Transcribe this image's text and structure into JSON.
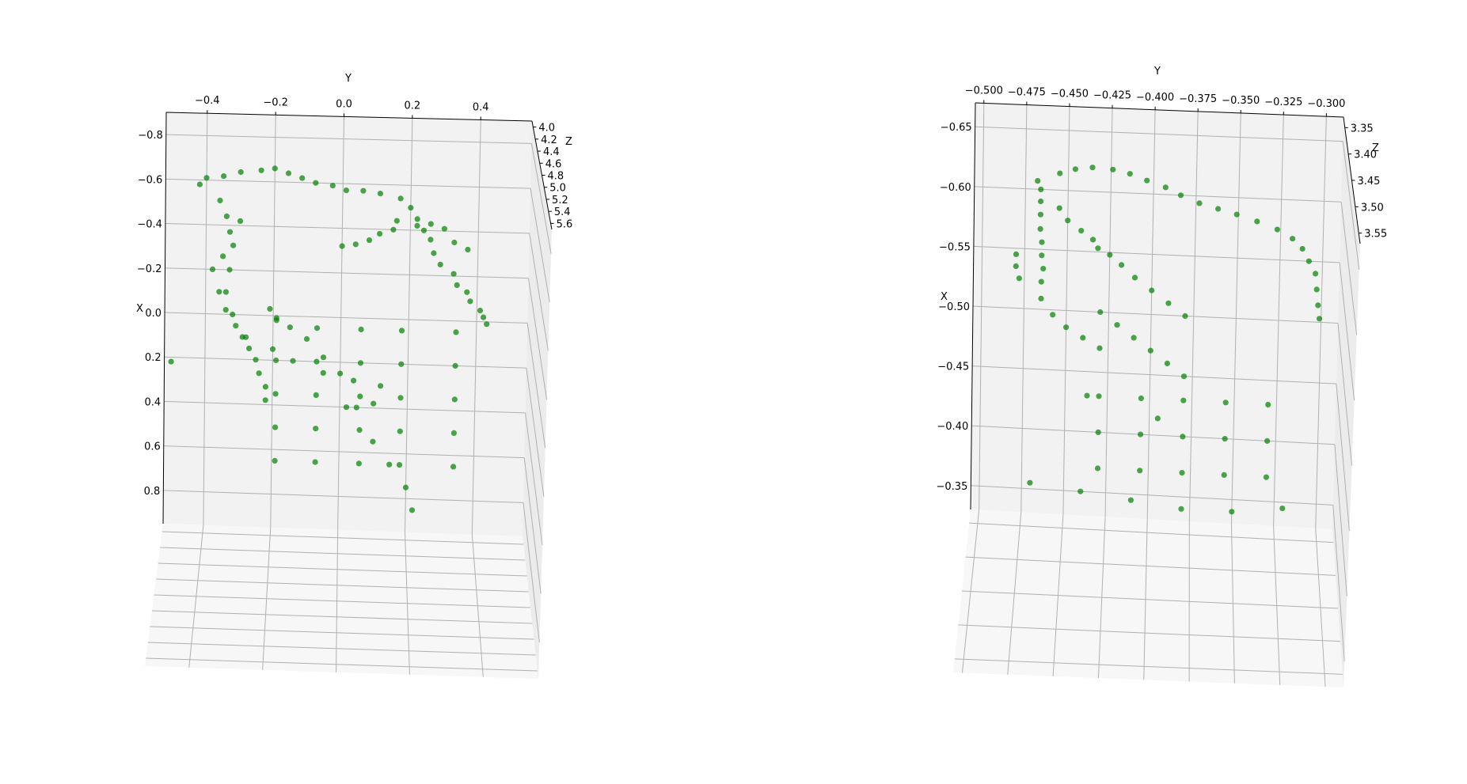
{
  "chart_data": [
    {
      "type": "scatter",
      "projection": "3d",
      "title": "",
      "xlabel": "X",
      "ylabel": "Y",
      "zlabel": "Z",
      "marker_color": "#008000",
      "pane_color": "#f2f2f2",
      "grid_color": "#b0b0b0",
      "xlim": [
        -0.9,
        0.95
      ],
      "ylim": [
        -0.52,
        0.55
      ],
      "zlim": [
        3.9,
        5.7
      ],
      "x_ticks": [
        -0.8,
        -0.6,
        -0.4,
        -0.2,
        0.0,
        0.2,
        0.4,
        0.6,
        0.8
      ],
      "x_tick_labels": [
        "−0.8",
        "−0.6",
        "−0.4",
        "−0.2",
        "0.0",
        "0.2",
        "0.4",
        "0.6",
        "0.8"
      ],
      "y_ticks": [
        -0.4,
        -0.2,
        0.0,
        0.2,
        0.4
      ],
      "y_tick_labels": [
        "−0.4",
        "−0.2",
        "0.0",
        "0.2",
        "0.4"
      ],
      "z_ticks": [
        4.0,
        4.2,
        4.4,
        4.6,
        4.8,
        5.0,
        5.2,
        5.4,
        5.6
      ],
      "z_tick_labels": [
        "4.0",
        "4.2",
        "4.4",
        "4.6",
        "4.8",
        "5.0",
        "5.2",
        "5.4",
        "5.6"
      ],
      "points": [
        {
          "x": -0.61,
          "y": -0.4
        },
        {
          "x": -0.62,
          "y": -0.35
        },
        {
          "x": -0.64,
          "y": -0.3
        },
        {
          "x": -0.65,
          "y": -0.24
        },
        {
          "x": -0.66,
          "y": -0.2
        },
        {
          "x": -0.64,
          "y": -0.16
        },
        {
          "x": -0.62,
          "y": -0.12
        },
        {
          "x": -0.6,
          "y": -0.08
        },
        {
          "x": -0.59,
          "y": -0.03
        },
        {
          "x": -0.57,
          "y": 0.01
        },
        {
          "x": -0.57,
          "y": 0.06
        },
        {
          "x": -0.56,
          "y": 0.11
        },
        {
          "x": -0.54,
          "y": 0.17
        },
        {
          "x": -0.5,
          "y": 0.2
        },
        {
          "x": -0.45,
          "y": 0.22
        },
        {
          "x": -0.4,
          "y": 0.24
        },
        {
          "x": -0.36,
          "y": 0.26
        },
        {
          "x": -0.3,
          "y": 0.27
        },
        {
          "x": -0.25,
          "y": 0.29
        },
        {
          "x": -0.21,
          "y": 0.33
        },
        {
          "x": -0.16,
          "y": 0.34
        },
        {
          "x": -0.13,
          "y": 0.37
        },
        {
          "x": -0.09,
          "y": 0.38
        },
        {
          "x": -0.05,
          "y": 0.41
        },
        {
          "x": -0.02,
          "y": 0.42
        },
        {
          "x": 0.01,
          "y": 0.43
        },
        {
          "x": -0.58,
          "y": -0.42
        },
        {
          "x": -0.51,
          "y": -0.36
        },
        {
          "x": -0.44,
          "y": -0.34
        },
        {
          "x": -0.42,
          "y": -0.3
        },
        {
          "x": -0.37,
          "y": -0.33
        },
        {
          "x": -0.31,
          "y": -0.32
        },
        {
          "x": -0.26,
          "y": -0.35
        },
        {
          "x": -0.2,
          "y": -0.33
        },
        {
          "x": -0.1,
          "y": -0.34
        },
        {
          "x": -0.02,
          "y": -0.34
        },
        {
          "x": 0.05,
          "y": -0.31
        },
        {
          "x": 0.1,
          "y": -0.29
        },
        {
          "x": 0.15,
          "y": -0.27
        },
        {
          "x": 0.2,
          "y": -0.25
        },
        {
          "x": 0.26,
          "y": -0.24
        },
        {
          "x": 0.32,
          "y": -0.22
        },
        {
          "x": 0.38,
          "y": -0.22
        },
        {
          "x": -0.32,
          "y": 0.0
        },
        {
          "x": -0.33,
          "y": 0.04
        },
        {
          "x": -0.35,
          "y": 0.08
        },
        {
          "x": -0.38,
          "y": 0.11
        },
        {
          "x": -0.4,
          "y": 0.15
        },
        {
          "x": -0.44,
          "y": 0.16
        },
        {
          "x": -0.42,
          "y": 0.22
        },
        {
          "x": -0.43,
          "y": 0.26
        },
        {
          "x": -0.41,
          "y": 0.3
        },
        {
          "x": -0.35,
          "y": 0.33
        },
        {
          "x": -0.32,
          "y": 0.37
        },
        {
          "x": -0.2,
          "y": -0.38
        },
        {
          "x": -0.1,
          "y": -0.36
        },
        {
          "x": 0.0,
          "y": -0.32
        },
        {
          "x": 0.1,
          "y": -0.28
        },
        {
          "x": 0.15,
          "y": -0.2
        },
        {
          "x": 0.2,
          "y": -0.14
        },
        {
          "x": 0.25,
          "y": -0.05
        },
        {
          "x": 0.28,
          "y": 0.04
        },
        {
          "x": 0.3,
          "y": 0.12
        },
        {
          "x": -0.03,
          "y": -0.21
        },
        {
          "x": 0.01,
          "y": -0.19
        },
        {
          "x": 0.05,
          "y": -0.15
        },
        {
          "x": 0.1,
          "y": -0.1
        },
        {
          "x": 0.18,
          "y": -0.05
        },
        {
          "x": 0.25,
          "y": 0.0
        },
        {
          "x": 0.4,
          "y": 0.05
        },
        {
          "x": 0.55,
          "y": 0.1
        },
        {
          "x": 0.65,
          "y": 0.15
        },
        {
          "x": 0.75,
          "y": 0.2
        },
        {
          "x": 0.85,
          "y": 0.22
        },
        {
          "x": 0.02,
          "y": -0.19
        },
        {
          "x": 0.2,
          "y": -0.19
        },
        {
          "x": 0.35,
          "y": -0.19
        },
        {
          "x": 0.5,
          "y": -0.19
        },
        {
          "x": 0.65,
          "y": -0.19
        },
        {
          "x": 0.05,
          "y": -0.07
        },
        {
          "x": 0.2,
          "y": -0.07
        },
        {
          "x": 0.35,
          "y": -0.07
        },
        {
          "x": 0.5,
          "y": -0.07
        },
        {
          "x": 0.65,
          "y": -0.07
        },
        {
          "x": 0.05,
          "y": 0.06
        },
        {
          "x": 0.2,
          "y": 0.06
        },
        {
          "x": 0.35,
          "y": 0.06
        },
        {
          "x": 0.5,
          "y": 0.06
        },
        {
          "x": 0.65,
          "y": 0.06
        },
        {
          "x": 0.05,
          "y": 0.18
        },
        {
          "x": 0.2,
          "y": 0.18
        },
        {
          "x": 0.35,
          "y": 0.18
        },
        {
          "x": 0.5,
          "y": 0.18
        },
        {
          "x": 0.65,
          "y": 0.18
        },
        {
          "x": 0.05,
          "y": 0.34
        },
        {
          "x": 0.2,
          "y": 0.34
        },
        {
          "x": 0.35,
          "y": 0.34
        },
        {
          "x": 0.5,
          "y": 0.34
        },
        {
          "x": 0.65,
          "y": 0.34
        },
        {
          "x": 0.22,
          "y": -0.5
        },
        {
          "x": 0.4,
          "y": 0.02
        },
        {
          "x": 0.38,
          "y": 0.1
        }
      ]
    },
    {
      "type": "scatter",
      "projection": "3d",
      "title": "",
      "xlabel": "X",
      "ylabel": "Y",
      "zlabel": "Z",
      "marker_color": "#008000",
      "pane_color": "#f2f2f2",
      "grid_color": "#b0b0b0",
      "xlim": [
        -0.67,
        -0.33
      ],
      "ylim": [
        -0.505,
        -0.29
      ],
      "zlim": [
        3.33,
        3.57
      ],
      "x_ticks": [
        -0.65,
        -0.6,
        -0.55,
        -0.5,
        -0.45,
        -0.4,
        -0.35
      ],
      "x_tick_labels": [
        "−0.65",
        "−0.60",
        "−0.55",
        "−0.50",
        "−0.45",
        "−0.40",
        "−0.35"
      ],
      "y_ticks": [
        -0.5,
        -0.475,
        -0.45,
        -0.425,
        -0.4,
        -0.375,
        -0.35,
        -0.325,
        -0.3
      ],
      "y_tick_labels": [
        "−0.500",
        "−0.475",
        "−0.450",
        "−0.425",
        "−0.400",
        "−0.375",
        "−0.350",
        "−0.325",
        "−0.300"
      ],
      "z_ticks": [
        3.35,
        3.4,
        3.45,
        3.5,
        3.55
      ],
      "z_tick_labels": [
        "3.35",
        "3.40",
        "3.45",
        "3.50",
        "3.55"
      ],
      "points": [
        {
          "x": -0.607,
          "y": -0.468
        },
        {
          "x": -0.6,
          "y": -0.466
        },
        {
          "x": -0.59,
          "y": -0.466
        },
        {
          "x": -0.579,
          "y": -0.466
        },
        {
          "x": -0.567,
          "y": -0.466
        },
        {
          "x": -0.556,
          "y": -0.465
        },
        {
          "x": -0.545,
          "y": -0.465
        },
        {
          "x": -0.534,
          "y": -0.464
        },
        {
          "x": -0.523,
          "y": -0.465
        },
        {
          "x": -0.509,
          "y": -0.465
        },
        {
          "x": -0.496,
          "y": -0.458
        },
        {
          "x": -0.486,
          "y": -0.45
        },
        {
          "x": -0.478,
          "y": -0.44
        },
        {
          "x": -0.47,
          "y": -0.43
        },
        {
          "x": -0.614,
          "y": -0.455
        },
        {
          "x": -0.618,
          "y": -0.446
        },
        {
          "x": -0.62,
          "y": -0.436
        },
        {
          "x": -0.619,
          "y": -0.424
        },
        {
          "x": -0.616,
          "y": -0.414
        },
        {
          "x": -0.611,
          "y": -0.404
        },
        {
          "x": -0.606,
          "y": -0.393
        },
        {
          "x": -0.6,
          "y": -0.384
        },
        {
          "x": -0.594,
          "y": -0.373
        },
        {
          "x": -0.59,
          "y": -0.362
        },
        {
          "x": -0.586,
          "y": -0.351
        },
        {
          "x": -0.581,
          "y": -0.339
        },
        {
          "x": -0.575,
          "y": -0.327
        },
        {
          "x": -0.568,
          "y": -0.318
        },
        {
          "x": -0.56,
          "y": -0.312
        },
        {
          "x": -0.55,
          "y": -0.308
        },
        {
          "x": -0.54,
          "y": -0.304
        },
        {
          "x": -0.527,
          "y": -0.303
        },
        {
          "x": -0.514,
          "y": -0.302
        },
        {
          "x": -0.503,
          "y": -0.301
        },
        {
          "x": -0.585,
          "y": -0.455
        },
        {
          "x": -0.575,
          "y": -0.45
        },
        {
          "x": -0.567,
          "y": -0.442
        },
        {
          "x": -0.56,
          "y": -0.435
        },
        {
          "x": -0.553,
          "y": -0.432
        },
        {
          "x": -0.548,
          "y": -0.425
        },
        {
          "x": -0.54,
          "y": -0.418
        },
        {
          "x": -0.53,
          "y": -0.41
        },
        {
          "x": -0.52,
          "y": -0.4
        },
        {
          "x": -0.51,
          "y": -0.39
        },
        {
          "x": -0.5,
          "y": -0.38
        },
        {
          "x": -0.545,
          "y": -0.48
        },
        {
          "x": -0.535,
          "y": -0.48
        },
        {
          "x": -0.525,
          "y": -0.478
        },
        {
          "x": -0.5,
          "y": -0.43
        },
        {
          "x": -0.49,
          "y": -0.42
        },
        {
          "x": -0.48,
          "y": -0.41
        },
        {
          "x": -0.47,
          "y": -0.4
        },
        {
          "x": -0.46,
          "y": -0.39
        },
        {
          "x": -0.45,
          "y": -0.38
        },
        {
          "x": -0.43,
          "y": -0.43
        },
        {
          "x": -0.43,
          "y": -0.405
        },
        {
          "x": -0.43,
          "y": -0.38
        },
        {
          "x": -0.43,
          "y": -0.355
        },
        {
          "x": -0.43,
          "y": -0.33
        },
        {
          "x": -0.4,
          "y": -0.43
        },
        {
          "x": -0.4,
          "y": -0.405
        },
        {
          "x": -0.4,
          "y": -0.38
        },
        {
          "x": -0.4,
          "y": -0.355
        },
        {
          "x": -0.4,
          "y": -0.33
        },
        {
          "x": -0.37,
          "y": -0.43
        },
        {
          "x": -0.37,
          "y": -0.405
        },
        {
          "x": -0.37,
          "y": -0.38
        },
        {
          "x": -0.37,
          "y": -0.355
        },
        {
          "x": -0.37,
          "y": -0.33
        },
        {
          "x": -0.355,
          "y": -0.47
        },
        {
          "x": -0.35,
          "y": -0.44
        },
        {
          "x": -0.345,
          "y": -0.41
        },
        {
          "x": -0.34,
          "y": -0.38
        },
        {
          "x": -0.34,
          "y": -0.35
        },
        {
          "x": -0.345,
          "y": -0.32
        },
        {
          "x": -0.43,
          "y": -0.437
        },
        {
          "x": -0.414,
          "y": -0.395
        }
      ]
    }
  ]
}
